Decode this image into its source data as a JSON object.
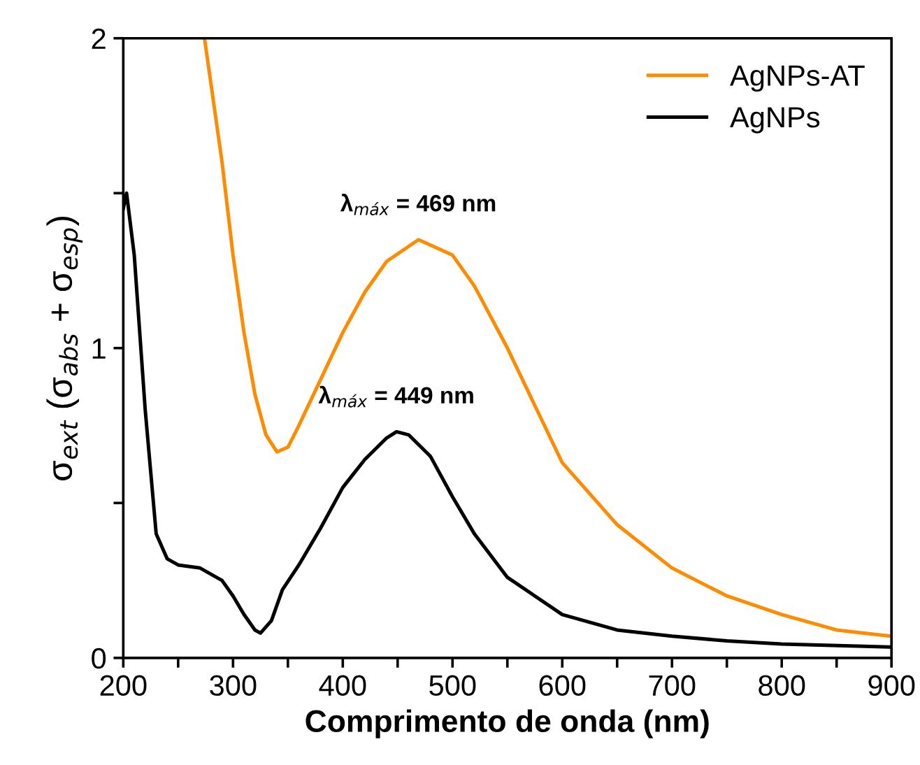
{
  "chart_data": {
    "type": "line",
    "xlabel": "Comprimento de onda (nm)",
    "ylabel": "σ$_{ext}$ (σ$_{abs}$ + σ$_{esp}$)",
    "xlim": [
      200,
      900
    ],
    "ylim": [
      0,
      2
    ],
    "xticks": [
      200,
      {
        "value": 250,
        "label": null
      },
      300,
      {
        "value": 350,
        "label": null
      },
      400,
      {
        "value": 450,
        "label": null
      },
      500,
      {
        "value": 550,
        "label": null
      },
      600,
      {
        "value": 650,
        "label": null
      },
      700,
      {
        "value": 750,
        "label": null
      },
      800,
      {
        "value": 850,
        "label": null
      },
      900
    ],
    "yticks": [
      0,
      {
        "value": 0.5,
        "label": null
      },
      1,
      {
        "value": 1.5,
        "label": null
      },
      2
    ],
    "grid": false,
    "legend": "top right",
    "marker": "none",
    "line_style": "solid",
    "series": [
      {
        "name": "AgNPs-AT",
        "color": "#ff8c00",
        "x": [
          274,
          290,
          300,
          310,
          320,
          330,
          340,
          350,
          360,
          380,
          400,
          420,
          440,
          469,
          500,
          520,
          550,
          600,
          650,
          700,
          750,
          800,
          850,
          900
        ],
        "values": [
          2.0,
          1.6,
          1.3,
          1.05,
          0.85,
          0.72,
          0.665,
          0.68,
          0.75,
          0.9,
          1.05,
          1.18,
          1.28,
          1.35,
          1.3,
          1.2,
          1.0,
          0.63,
          0.43,
          0.29,
          0.2,
          0.14,
          0.09,
          0.07
        ]
      },
      {
        "name": "AgNPs",
        "color": "#000000",
        "x": [
          200,
          203,
          210,
          220,
          230,
          240,
          250,
          270,
          290,
          300,
          310,
          320,
          325,
          335,
          345,
          360,
          380,
          400,
          420,
          440,
          449,
          460,
          480,
          500,
          520,
          550,
          600,
          650,
          700,
          750,
          800,
          900
        ],
        "values": [
          1.45,
          1.5,
          1.3,
          0.8,
          0.4,
          0.32,
          0.3,
          0.29,
          0.25,
          0.2,
          0.14,
          0.09,
          0.08,
          0.12,
          0.22,
          0.3,
          0.42,
          0.55,
          0.64,
          0.71,
          0.73,
          0.72,
          0.65,
          0.52,
          0.4,
          0.26,
          0.14,
          0.09,
          0.07,
          0.055,
          0.045,
          0.035
        ]
      }
    ],
    "annotations": [
      {
        "text": "λ$_{máx}$ = 469 nm",
        "x": 469,
        "y": 1.35
      },
      {
        "text": "λ$_{máx}$ = 449 nm",
        "x": 449,
        "y": 0.73
      }
    ]
  }
}
